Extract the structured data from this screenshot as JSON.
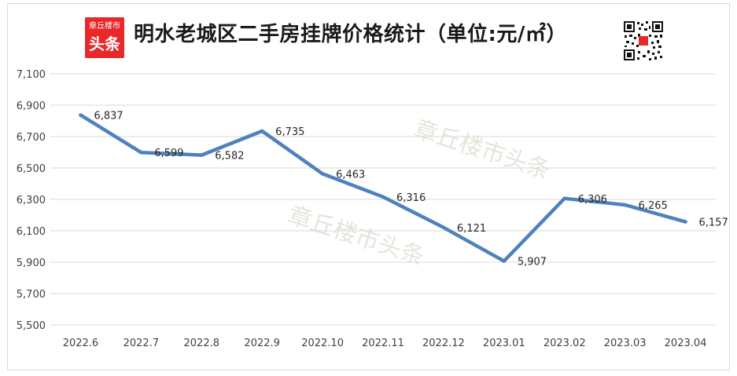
{
  "header": {
    "title": "明水老城区二手房挂牌价格统计（单位:元/㎡）",
    "logo_top": "章丘楼市",
    "logo_main": "头条"
  },
  "watermarks": [
    "章丘楼市头条",
    "章丘楼市头条"
  ],
  "chart_data": {
    "type": "line",
    "title": "明水老城区二手房挂牌价格统计（单位:元/㎡）",
    "categories": [
      "2022.6",
      "2022.7",
      "2022.8",
      "2022.9",
      "2022.10",
      "2022.11",
      "2022.12",
      "2023.01",
      "2023.02",
      "2023.03",
      "2023.04"
    ],
    "series": [
      {
        "values": [
          6837,
          6599,
          6582,
          6735,
          6463,
          6316,
          6121,
          5907,
          6306,
          6265,
          6157
        ]
      }
    ],
    "data_labels": [
      "6,837",
      "6,599",
      "6,582",
      "6,735",
      "6,463",
      "6,316",
      "6,121",
      "5,907",
      "6,306",
      "6,265",
      "6,157"
    ],
    "y_ticks": [
      5500,
      5700,
      5900,
      6100,
      6300,
      6500,
      6700,
      6900,
      7100
    ],
    "y_tick_labels": [
      "5,500",
      "5,700",
      "5,900",
      "6,100",
      "6,300",
      "6,500",
      "6,700",
      "6,900",
      "7,100"
    ],
    "ylim": [
      5500,
      7100
    ],
    "grid": true,
    "legend": "none",
    "xlabel": "",
    "ylabel": "",
    "line_color": "#4f81bd",
    "grid_color": "#d9d9d9"
  }
}
